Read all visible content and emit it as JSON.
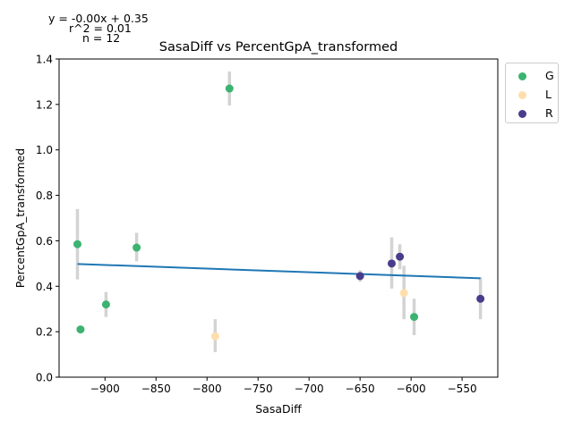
{
  "chart_data": {
    "type": "scatter",
    "title": "SasaDiff vs PercentGpA_transformed",
    "xlabel": "SasaDiff",
    "ylabel": "PercentGpA_transformed",
    "xlim": [
      -945,
      -515
    ],
    "ylim": [
      0,
      1.4
    ],
    "x_ticks": [
      -900,
      -850,
      -800,
      -750,
      -700,
      -650,
      -600,
      -550
    ],
    "x_tick_labels": [
      "−900",
      "−850",
      "−800",
      "−750",
      "−700",
      "−650",
      "−600",
      "−550"
    ],
    "y_ticks": [
      0.0,
      0.2,
      0.4,
      0.6,
      0.8,
      1.0,
      1.2,
      1.4
    ],
    "y_tick_labels": [
      "0.0",
      "0.2",
      "0.4",
      "0.6",
      "0.8",
      "1.0",
      "1.2",
      "1.4"
    ],
    "grid": false,
    "legend_position": "outside-top-right",
    "series": [
      {
        "name": "G",
        "color": "#3cb371",
        "points": [
          {
            "x": -927,
            "y": 0.585,
            "err_low": 0.43,
            "err_high": 0.74
          },
          {
            "x": -924,
            "y": 0.21,
            "err_low": 0.21,
            "err_high": 0.21
          },
          {
            "x": -899,
            "y": 0.32,
            "err_low": 0.265,
            "err_high": 0.375
          },
          {
            "x": -869,
            "y": 0.57,
            "err_low": 0.51,
            "err_high": 0.635
          },
          {
            "x": -778,
            "y": 1.27,
            "err_low": 1.195,
            "err_high": 1.345
          },
          {
            "x": -597,
            "y": 0.265,
            "err_low": 0.185,
            "err_high": 0.345
          }
        ]
      },
      {
        "name": "L",
        "color": "#ffdead",
        "points": [
          {
            "x": -792,
            "y": 0.18,
            "err_low": 0.11,
            "err_high": 0.255
          },
          {
            "x": -607,
            "y": 0.37,
            "err_low": 0.255,
            "err_high": 0.49
          }
        ]
      },
      {
        "name": "R",
        "color": "#483d8b",
        "points": [
          {
            "x": -650,
            "y": 0.445,
            "err_low": 0.42,
            "err_high": 0.47
          },
          {
            "x": -619,
            "y": 0.5,
            "err_low": 0.39,
            "err_high": 0.615
          },
          {
            "x": -611,
            "y": 0.53,
            "err_low": 0.475,
            "err_high": 0.585
          },
          {
            "x": -532,
            "y": 0.345,
            "err_low": 0.255,
            "err_high": 0.44
          }
        ]
      }
    ],
    "error_bar_color": "#d3d3d3",
    "fit_line": {
      "x": [
        -927,
        -532
      ],
      "y": [
        0.498,
        0.435
      ],
      "color": "#1f77b4"
    },
    "annotations": {
      "equation": "y = -0.00x + 0.35",
      "r_squared": "r^2 = 0.01",
      "n": "n = 12"
    }
  }
}
